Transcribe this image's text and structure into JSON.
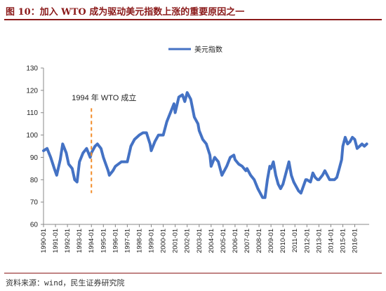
{
  "figure": {
    "title": "图 10：加入 WTO 成为驱动美元指数上涨的重要原因之一",
    "source": "资料来源：wind，民生证券研究院"
  },
  "chart_data": {
    "type": "line",
    "title": "",
    "xlabel": "",
    "ylabel": "",
    "ylim": [
      60,
      130
    ],
    "yticks": [
      60,
      70,
      80,
      90,
      100,
      110,
      120,
      130
    ],
    "xlim": [
      1990.0,
      2017.2
    ],
    "xticks": [
      "1990-01",
      "1991-01",
      "1992-01",
      "1993-01",
      "1994-01",
      "1995-01",
      "1996-01",
      "1997-01",
      "1998-01",
      "1999-01",
      "2000-01",
      "2001-01",
      "2002-01",
      "2003-01",
      "2004-01",
      "2005-01",
      "2006-01",
      "2007-01",
      "2008-01",
      "2009-01",
      "2010-01",
      "2011-01",
      "2012-01",
      "2013-01",
      "2014-01",
      "2015-01",
      "2016-01"
    ],
    "legend": {
      "position": "top-right",
      "entries": [
        "美元指数"
      ]
    },
    "annotation": {
      "text": "1994 年 WTO 成立",
      "x": 1994.0,
      "style": "dashed-vertical",
      "color": "#f28c28"
    },
    "series": [
      {
        "name": "美元指数",
        "color": "#4472c4",
        "points": [
          [
            1990.0,
            93
          ],
          [
            1990.3,
            94
          ],
          [
            1990.6,
            90
          ],
          [
            1990.9,
            85
          ],
          [
            1991.1,
            82
          ],
          [
            1991.4,
            89
          ],
          [
            1991.6,
            96
          ],
          [
            1991.9,
            92
          ],
          [
            1992.1,
            87
          ],
          [
            1992.4,
            85
          ],
          [
            1992.6,
            80
          ],
          [
            1992.8,
            79
          ],
          [
            1993.0,
            88
          ],
          [
            1993.3,
            92
          ],
          [
            1993.6,
            94
          ],
          [
            1993.9,
            90
          ],
          [
            1994.0,
            92
          ],
          [
            1994.3,
            95
          ],
          [
            1994.5,
            96
          ],
          [
            1994.8,
            94
          ],
          [
            1995.0,
            90
          ],
          [
            1995.2,
            87
          ],
          [
            1995.4,
            84
          ],
          [
            1995.5,
            82
          ],
          [
            1995.8,
            84
          ],
          [
            1996.0,
            86
          ],
          [
            1996.5,
            88
          ],
          [
            1997.0,
            88
          ],
          [
            1997.3,
            95
          ],
          [
            1997.6,
            98
          ],
          [
            1998.0,
            100
          ],
          [
            1998.3,
            101
          ],
          [
            1998.6,
            101
          ],
          [
            1998.9,
            96
          ],
          [
            1999.0,
            93
          ],
          [
            1999.3,
            97
          ],
          [
            1999.6,
            100
          ],
          [
            2000.0,
            100
          ],
          [
            2000.3,
            106
          ],
          [
            2000.6,
            110
          ],
          [
            2000.9,
            114
          ],
          [
            2001.0,
            110
          ],
          [
            2001.3,
            117
          ],
          [
            2001.6,
            118
          ],
          [
            2001.8,
            115
          ],
          [
            2002.0,
            119
          ],
          [
            2002.3,
            116
          ],
          [
            2002.6,
            108
          ],
          [
            2002.9,
            105
          ],
          [
            2003.0,
            102
          ],
          [
            2003.3,
            98
          ],
          [
            2003.6,
            96
          ],
          [
            2003.9,
            91
          ],
          [
            2004.0,
            86
          ],
          [
            2004.3,
            90
          ],
          [
            2004.6,
            88
          ],
          [
            2004.9,
            82
          ],
          [
            2005.0,
            83
          ],
          [
            2005.3,
            86
          ],
          [
            2005.6,
            90
          ],
          [
            2005.9,
            91
          ],
          [
            2006.0,
            89
          ],
          [
            2006.3,
            87
          ],
          [
            2006.6,
            86
          ],
          [
            2006.9,
            84
          ],
          [
            2007.0,
            85
          ],
          [
            2007.3,
            82
          ],
          [
            2007.6,
            80
          ],
          [
            2007.9,
            76
          ],
          [
            2008.0,
            75
          ],
          [
            2008.3,
            72
          ],
          [
            2008.5,
            72
          ],
          [
            2008.7,
            80
          ],
          [
            2008.9,
            86
          ],
          [
            2009.0,
            85
          ],
          [
            2009.2,
            88
          ],
          [
            2009.4,
            82
          ],
          [
            2009.6,
            78
          ],
          [
            2009.8,
            76
          ],
          [
            2010.0,
            78
          ],
          [
            2010.3,
            84
          ],
          [
            2010.5,
            88
          ],
          [
            2010.7,
            82
          ],
          [
            2010.9,
            79
          ],
          [
            2011.0,
            78
          ],
          [
            2011.3,
            75
          ],
          [
            2011.5,
            74
          ],
          [
            2011.7,
            77
          ],
          [
            2011.9,
            80
          ],
          [
            2012.0,
            80
          ],
          [
            2012.3,
            79
          ],
          [
            2012.5,
            83
          ],
          [
            2012.7,
            81
          ],
          [
            2012.9,
            80
          ],
          [
            2013.0,
            80
          ],
          [
            2013.3,
            82
          ],
          [
            2013.5,
            84
          ],
          [
            2013.7,
            82
          ],
          [
            2013.9,
            80
          ],
          [
            2014.0,
            80
          ],
          [
            2014.3,
            80
          ],
          [
            2014.5,
            81
          ],
          [
            2014.7,
            85
          ],
          [
            2014.9,
            89
          ],
          [
            2015.0,
            95
          ],
          [
            2015.2,
            99
          ],
          [
            2015.4,
            96
          ],
          [
            2015.6,
            97
          ],
          [
            2015.8,
            99
          ],
          [
            2016.0,
            98
          ],
          [
            2016.2,
            94
          ],
          [
            2016.4,
            95
          ],
          [
            2016.6,
            96
          ],
          [
            2016.8,
            95
          ],
          [
            2017.0,
            96
          ]
        ]
      }
    ]
  }
}
